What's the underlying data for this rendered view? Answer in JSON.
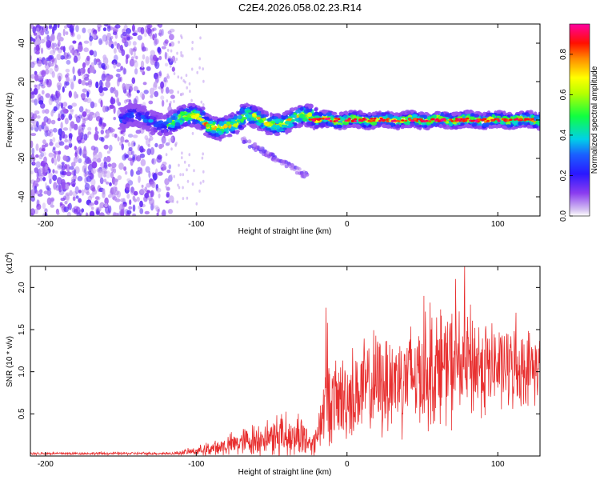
{
  "title": "C2E4.2026.058.02.23.R14",
  "chart_data": [
    {
      "type": "heatmap",
      "xlabel": "Height of straight line (km)",
      "ylabel": "Frequency (Hz)",
      "xlim": [
        -210,
        128
      ],
      "ylim": [
        -50,
        50
      ],
      "x_ticks": [
        -200,
        -100,
        0,
        100
      ],
      "y_ticks": [
        -40,
        -20,
        0,
        20,
        40
      ],
      "colorbar": {
        "label": "Normalized spectral amplitude",
        "range": [
          0.0,
          0.95
        ],
        "ticks": [
          "0.0",
          "0.2",
          "0.4",
          "0.6",
          "0.8"
        ],
        "tick_values": [
          0.0,
          0.2,
          0.4,
          0.6,
          0.8
        ]
      },
      "features": [
        {
          "name": "noise_region",
          "x_range": [
            -210,
            -115
          ],
          "freq_range": [
            -50,
            50
          ],
          "amplitude": 0.15
        },
        {
          "name": "signal_band",
          "x_range": [
            -150,
            128
          ],
          "freq_center": 0,
          "freq_halfwidth": 4,
          "amplitude": 0.75
        },
        {
          "name": "descending_trace",
          "x_range": [
            -70,
            -25
          ],
          "freq_range": [
            -10,
            -30
          ],
          "amplitude": 0.12
        }
      ]
    },
    {
      "type": "line",
      "xlabel": "Height of straight line (km)",
      "ylabel": "SNR (10 * v/v)",
      "multiplier": "(x10",
      "multiplier_exp": "4",
      "multiplier_close": ")",
      "xlim": [
        -210,
        128
      ],
      "ylim": [
        0,
        2.25
      ],
      "x_ticks": [
        -200,
        -100,
        0,
        100
      ],
      "y_ticks": [
        0.5,
        1.0,
        1.5,
        2.0
      ],
      "y_tick_labels": [
        "0.5",
        "1.0",
        "1.5",
        "2.0"
      ],
      "series": [
        {
          "name": "SNR",
          "color": "#e83030",
          "envelope": [
            {
              "x": -210,
              "mean": 0.03,
              "amp": 0.02
            },
            {
              "x": -115,
              "mean": 0.03,
              "amp": 0.02
            },
            {
              "x": -100,
              "mean": 0.06,
              "amp": 0.06
            },
            {
              "x": -80,
              "mean": 0.12,
              "amp": 0.15
            },
            {
              "x": -60,
              "mean": 0.2,
              "amp": 0.25
            },
            {
              "x": -45,
              "mean": 0.25,
              "amp": 0.3
            },
            {
              "x": -30,
              "mean": 0.25,
              "amp": 0.35
            },
            {
              "x": -22,
              "mean": 0.12,
              "amp": 0.15
            },
            {
              "x": -15,
              "mean": 0.6,
              "amp": 0.55
            },
            {
              "x": 0,
              "mean": 0.7,
              "amp": 0.65
            },
            {
              "x": 20,
              "mean": 0.85,
              "amp": 0.75
            },
            {
              "x": 50,
              "mean": 1.0,
              "amp": 0.8
            },
            {
              "x": 80,
              "mean": 1.1,
              "amp": 0.85
            },
            {
              "x": 100,
              "mean": 1.05,
              "amp": 0.6
            },
            {
              "x": 128,
              "mean": 1.05,
              "amp": 0.5
            }
          ],
          "peaks": [
            {
              "x": -14,
              "y": 1.76
            },
            {
              "x": -13,
              "y": 1.58
            },
            {
              "x": 78,
              "y": 2.25
            },
            {
              "x": 72,
              "y": 2.1
            },
            {
              "x": 51,
              "y": 1.9
            },
            {
              "x": 55,
              "y": 1.82
            },
            {
              "x": 112,
              "y": 1.7
            },
            {
              "x": 62,
              "y": 1.74
            }
          ]
        }
      ]
    }
  ]
}
